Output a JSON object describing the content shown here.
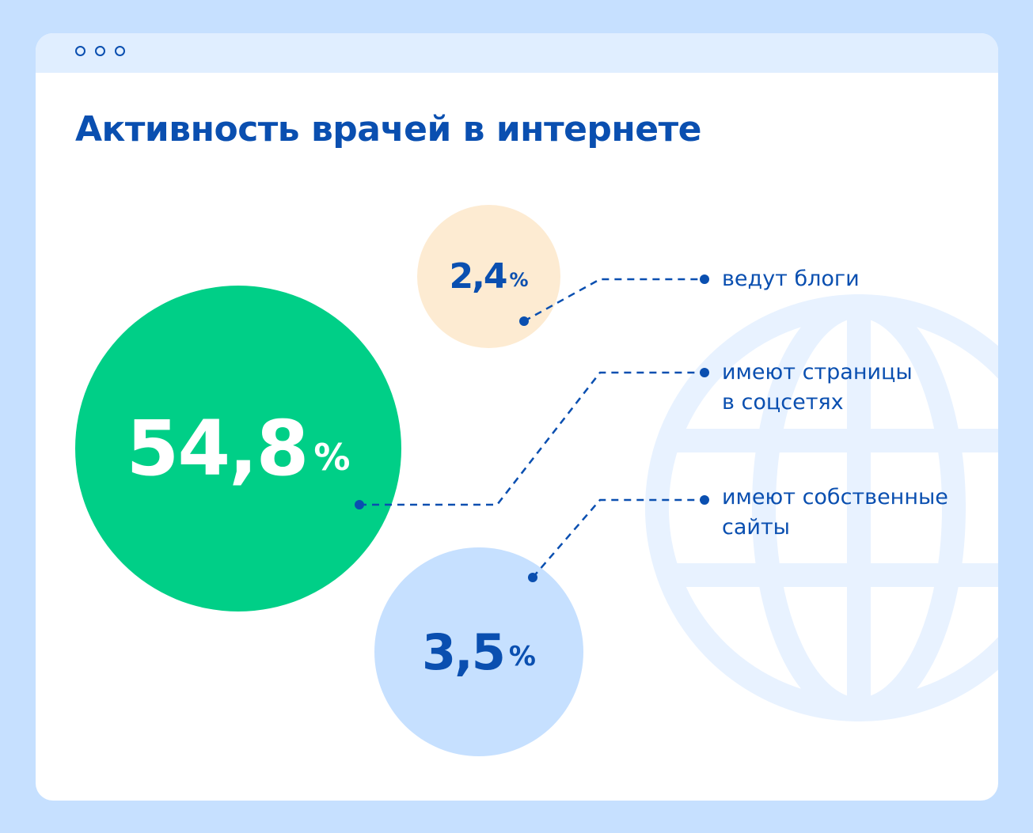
{
  "window": {
    "controls": [
      "window-dot",
      "window-dot",
      "window-dot"
    ]
  },
  "title": "Активность врачей в интернете",
  "colors": {
    "frame": "#c6e0ff",
    "titlebar": "#e0eeff",
    "accent_blue": "#0a4fb0",
    "green": "#00cf87",
    "peach": "#fdebd2",
    "light_blue": "#c6e0ff",
    "globe": "#e8f2ff"
  },
  "decor": {
    "background_icon": "globe-icon"
  },
  "chart_data": {
    "type": "bubble",
    "unit": "%",
    "items": [
      {
        "value": 54.8,
        "display": "54,8",
        "unit": "%",
        "label": "имеют страницы\nв соцсетях",
        "color": "#00cf87"
      },
      {
        "value": 2.4,
        "display": "2,4",
        "unit": "%",
        "label": "ведут блоги",
        "color": "#fdebd2"
      },
      {
        "value": 3.5,
        "display": "3,5",
        "unit": "%",
        "label": "имеют собственные\nсайты",
        "color": "#c6e0ff"
      }
    ]
  }
}
